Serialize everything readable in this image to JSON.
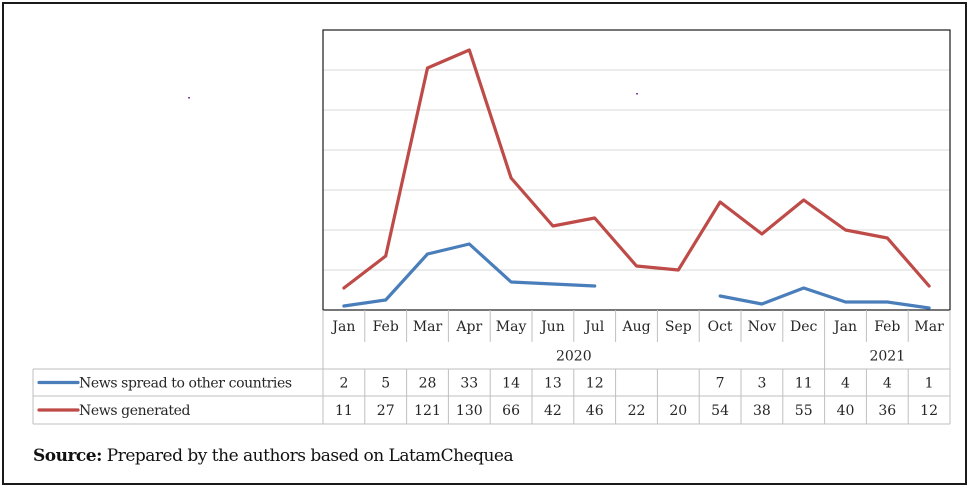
{
  "chart_data": {
    "type": "line",
    "title": "",
    "xlabel": "",
    "ylabel": "",
    "ylim": [
      0,
      140
    ],
    "y_gridlines": [
      20,
      40,
      60,
      80,
      100,
      120,
      140
    ],
    "y_tick_labels_shown": false,
    "grid": true,
    "legend": "table-left",
    "categories": [
      "Jan",
      "Feb",
      "Mar",
      "Apr",
      "May",
      "Jun",
      "Jul",
      "Aug",
      "Sep",
      "Oct",
      "Nov",
      "Dec",
      "Jan",
      "Feb",
      "Mar"
    ],
    "year_groups": [
      {
        "label": "2020",
        "start": 0,
        "end": 11
      },
      {
        "label": "2021",
        "start": 12,
        "end": 14
      }
    ],
    "series": [
      {
        "name": "News spread to other countries",
        "color": "#4a7ebb",
        "values": [
          2,
          5,
          28,
          33,
          14,
          13,
          12,
          null,
          null,
          7,
          3,
          11,
          4,
          4,
          1
        ]
      },
      {
        "name": "News generated",
        "color": "#be4b48",
        "values": [
          11,
          27,
          121,
          130,
          66,
          42,
          46,
          22,
          20,
          54,
          38,
          55,
          40,
          36,
          12
        ]
      }
    ]
  },
  "source": {
    "label": "Source:",
    "text": " Prepared by the authors based on LatamChequea"
  }
}
